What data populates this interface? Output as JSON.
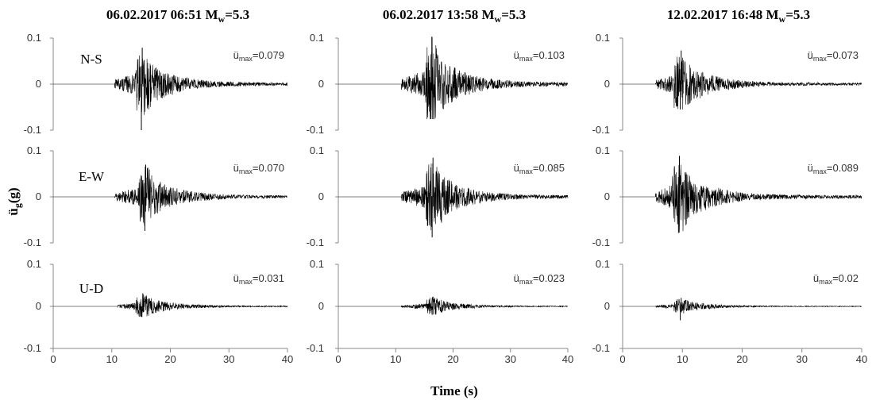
{
  "figure": {
    "ylabel_main": "ü",
    "ylabel_sub": "g",
    "ylabel_unit": "(g)",
    "xlabel": "Time (s)"
  },
  "chart_data": {
    "type": "line",
    "layout": "3 rows x 3 columns of acceleration time histories",
    "xlim": [
      0,
      40
    ],
    "ylim": [
      -0.1,
      0.1
    ],
    "xticks": [
      0,
      10,
      20,
      30,
      40
    ],
    "yticks": [
      0.1,
      0,
      -0.1
    ],
    "ytick_labels": [
      "0.1",
      "0",
      "-0.1"
    ],
    "peak_prefix": "ü",
    "peak_sub": "max",
    "line_color": "#000000",
    "grid": false,
    "legend": "none",
    "columns": [
      {
        "title_main": "06.02.2017 06:51 M",
        "title_sub": "w",
        "title_end": "=5.3",
        "onset_s": 10.5,
        "traces": [
          {
            "component": "N-S",
            "peak_label": "=0.079",
            "peak": 0.079,
            "min": -0.1,
            "onset_s": 10.5,
            "peak_time_s": 15.2
          },
          {
            "component": "E-W",
            "peak_label": "=0.070",
            "peak": 0.07,
            "min": -0.074,
            "onset_s": 10.5,
            "peak_time_s": 15.8
          },
          {
            "component": "U-D",
            "peak_label": "=0.031",
            "peak": 0.031,
            "min": -0.025,
            "onset_s": 11.0,
            "peak_time_s": 15.3
          }
        ]
      },
      {
        "title_main": "06.02.2017 13:58 M",
        "title_sub": "w",
        "title_end": "=5.3",
        "onset_s": 11.0,
        "traces": [
          {
            "component": "",
            "peak_label": "=0.103",
            "peak": 0.103,
            "min": -0.076,
            "onset_s": 11.0,
            "peak_time_s": 16.3
          },
          {
            "component": "",
            "peak_label": "=0.085",
            "peak": 0.085,
            "min": -0.088,
            "onset_s": 11.0,
            "peak_time_s": 16.5
          },
          {
            "component": "",
            "peak_label": "=0.023",
            "peak": 0.023,
            "min": -0.02,
            "onset_s": 11.0,
            "peak_time_s": 16.5
          }
        ]
      },
      {
        "title_main": "12.02.2017 16:48 M",
        "title_sub": "w",
        "title_end": "=5.3",
        "onset_s": 5.5,
        "traces": [
          {
            "component": "",
            "peak_label": "=0.073",
            "peak": 0.073,
            "min": -0.055,
            "onset_s": 5.5,
            "peak_time_s": 9.8
          },
          {
            "component": "",
            "peak_label": "=0.089",
            "peak": 0.089,
            "min": -0.078,
            "onset_s": 5.5,
            "peak_time_s": 9.5
          },
          {
            "component": "",
            "peak_label": "=0.02",
            "peak": 0.02,
            "min": -0.033,
            "onset_s": 5.5,
            "peak_time_s": 9.8
          }
        ]
      }
    ]
  }
}
